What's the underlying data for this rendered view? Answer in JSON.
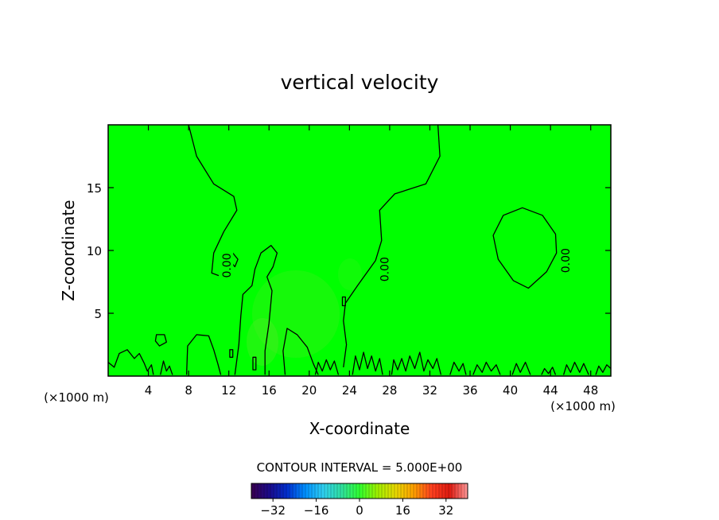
{
  "chart_data": {
    "type": "heatmap",
    "title": "vertical velocity",
    "xlabel": "X-coordinate",
    "ylabel": "Z-coordinate",
    "x_unit_left": "(×1000 m)",
    "x_unit_right": "(×1000 m)",
    "xlim": [
      0,
      50
    ],
    "ylim": [
      0,
      20
    ],
    "x_ticks": [
      4,
      8,
      12,
      16,
      20,
      24,
      28,
      32,
      36,
      40,
      44,
      48
    ],
    "x_tick_labels": [
      "4",
      "8",
      "12",
      "16",
      "20",
      "24",
      "28",
      "32",
      "36",
      "40",
      "44",
      "48"
    ],
    "y_ticks": [
      5,
      10,
      15
    ],
    "y_tick_labels": [
      "5",
      "10",
      "15"
    ],
    "background_color": "#00ff00",
    "contour_level_value": 0,
    "contour_labels": [
      {
        "text": "0.00",
        "x": 11.8,
        "z": 8.8
      },
      {
        "text": "0.00",
        "x": 27.5,
        "z": 8.5
      },
      {
        "text": "0.00",
        "x": 45.5,
        "z": 9.2
      }
    ],
    "contours": [
      {
        "closed": false,
        "points": [
          [
            8.0,
            20
          ],
          [
            8.8,
            17.5
          ],
          [
            10.5,
            15.3
          ],
          [
            12.5,
            14.3
          ],
          [
            12.8,
            13.2
          ],
          [
            11.5,
            11.5
          ],
          [
            10.5,
            9.8
          ],
          [
            10.3,
            8.2
          ],
          [
            11.0,
            8.0
          ]
        ]
      },
      {
        "closed": false,
        "points": [
          [
            32.8,
            20
          ],
          [
            33.0,
            17.5
          ],
          [
            31.6,
            15.3
          ],
          [
            28.5,
            14.5
          ],
          [
            27.0,
            13.2
          ],
          [
            27.2,
            10.8
          ],
          [
            26.6,
            9.2
          ],
          [
            24.8,
            7.2
          ],
          [
            23.6,
            5.8
          ],
          [
            23.4,
            4.4
          ],
          [
            23.7,
            2.5
          ],
          [
            23.4,
            0.7
          ]
        ]
      },
      {
        "closed": true,
        "points": [
          [
            41.2,
            13.4
          ],
          [
            43.2,
            12.8
          ],
          [
            44.5,
            11.3
          ],
          [
            44.6,
            9.8
          ],
          [
            43.6,
            8.3
          ],
          [
            41.8,
            7.0
          ],
          [
            40.3,
            7.6
          ],
          [
            38.8,
            9.3
          ],
          [
            38.3,
            11.2
          ],
          [
            39.3,
            12.8
          ]
        ]
      },
      {
        "closed": false,
        "points": [
          [
            12.6,
            0.1
          ],
          [
            13.0,
            2.5
          ],
          [
            13.2,
            4.8
          ],
          [
            13.4,
            6.5
          ],
          [
            14.3,
            7.2
          ],
          [
            14.6,
            8.5
          ],
          [
            15.2,
            9.8
          ],
          [
            16.2,
            10.4
          ],
          [
            16.8,
            9.8
          ],
          [
            16.4,
            8.7
          ],
          [
            15.8,
            7.9
          ],
          [
            16.3,
            6.8
          ],
          [
            16.0,
            4.2
          ],
          [
            15.6,
            2.0
          ],
          [
            15.6,
            0.1
          ]
        ]
      },
      {
        "closed": true,
        "points": [
          [
            12.4,
            9.8
          ],
          [
            12.9,
            9.3
          ],
          [
            12.6,
            8.7
          ],
          [
            12.1,
            9.2
          ]
        ]
      },
      {
        "closed": false,
        "points": [
          [
            17.6,
            0.1
          ],
          [
            17.4,
            2.0
          ],
          [
            17.8,
            3.8
          ],
          [
            18.8,
            3.3
          ],
          [
            19.8,
            2.3
          ],
          [
            20.4,
            1.0
          ],
          [
            20.9,
            0.1
          ]
        ]
      },
      {
        "closed": false,
        "points": [
          [
            7.8,
            0.1
          ],
          [
            7.9,
            2.4
          ],
          [
            8.8,
            3.3
          ],
          [
            10.0,
            3.2
          ],
          [
            10.5,
            2.1
          ],
          [
            10.9,
            1.0
          ],
          [
            11.2,
            0.1
          ]
        ]
      },
      {
        "closed": true,
        "points": [
          [
            4.8,
            3.3
          ],
          [
            5.6,
            3.3
          ],
          [
            5.8,
            2.7
          ],
          [
            5.1,
            2.4
          ],
          [
            4.7,
            2.8
          ]
        ]
      },
      {
        "closed": true,
        "points": [
          [
            23.3,
            6.3
          ],
          [
            23.6,
            6.3
          ],
          [
            23.6,
            5.6
          ],
          [
            23.3,
            5.6
          ]
        ]
      },
      {
        "closed": true,
        "points": [
          [
            14.4,
            1.5
          ],
          [
            14.7,
            1.5
          ],
          [
            14.7,
            0.5
          ],
          [
            14.4,
            0.5
          ]
        ]
      },
      {
        "closed": true,
        "points": [
          [
            12.1,
            2.1
          ],
          [
            12.4,
            2.1
          ],
          [
            12.4,
            1.5
          ],
          [
            12.1,
            1.5
          ]
        ]
      },
      {
        "closed": false,
        "points": [
          [
            0.0,
            1.1
          ],
          [
            0.6,
            0.7
          ],
          [
            1.1,
            1.8
          ],
          [
            1.9,
            2.1
          ],
          [
            2.6,
            1.4
          ],
          [
            3.1,
            1.8
          ],
          [
            3.6,
            1.0
          ],
          [
            3.9,
            0.4
          ],
          [
            4.3,
            0.9
          ],
          [
            4.5,
            0.1
          ]
        ]
      },
      {
        "closed": false,
        "points": [
          [
            5.2,
            0.1
          ],
          [
            5.5,
            1.2
          ],
          [
            5.8,
            0.4
          ],
          [
            6.1,
            0.8
          ],
          [
            6.4,
            0.1
          ]
        ]
      },
      {
        "closed": false,
        "points": [
          [
            20.6,
            0.1
          ],
          [
            20.9,
            1.1
          ],
          [
            21.3,
            0.4
          ],
          [
            21.7,
            1.3
          ],
          [
            22.1,
            0.5
          ],
          [
            22.5,
            1.2
          ],
          [
            22.9,
            0.1
          ]
        ]
      },
      {
        "closed": false,
        "points": [
          [
            24.3,
            0.1
          ],
          [
            24.6,
            1.6
          ],
          [
            25.0,
            0.5
          ],
          [
            25.4,
            1.9
          ],
          [
            25.8,
            0.6
          ],
          [
            26.2,
            1.6
          ],
          [
            26.6,
            0.4
          ],
          [
            27.0,
            1.4
          ],
          [
            27.3,
            0.1
          ]
        ]
      },
      {
        "closed": false,
        "points": [
          [
            28.2,
            0.1
          ],
          [
            28.4,
            1.3
          ],
          [
            28.8,
            0.5
          ],
          [
            29.2,
            1.4
          ],
          [
            29.6,
            0.4
          ],
          [
            30.0,
            1.6
          ],
          [
            30.5,
            0.6
          ],
          [
            31.0,
            1.9
          ],
          [
            31.4,
            0.4
          ],
          [
            31.8,
            1.3
          ],
          [
            32.3,
            0.6
          ],
          [
            32.7,
            1.4
          ],
          [
            33.1,
            0.1
          ]
        ]
      },
      {
        "closed": false,
        "points": [
          [
            34.0,
            0.1
          ],
          [
            34.4,
            1.1
          ],
          [
            34.9,
            0.4
          ],
          [
            35.3,
            1.0
          ],
          [
            35.6,
            0.1
          ]
        ]
      },
      {
        "closed": false,
        "points": [
          [
            36.3,
            0.1
          ],
          [
            36.7,
            0.9
          ],
          [
            37.2,
            0.3
          ],
          [
            37.6,
            1.1
          ],
          [
            38.1,
            0.4
          ],
          [
            38.6,
            0.9
          ],
          [
            39.0,
            0.1
          ]
        ]
      },
      {
        "closed": false,
        "points": [
          [
            40.2,
            0.1
          ],
          [
            40.6,
            1.0
          ],
          [
            41.0,
            0.3
          ],
          [
            41.5,
            1.1
          ],
          [
            42.0,
            0.1
          ]
        ]
      },
      {
        "closed": false,
        "points": [
          [
            43.1,
            0.1
          ],
          [
            43.4,
            0.6
          ],
          [
            43.8,
            0.2
          ],
          [
            44.2,
            0.7
          ],
          [
            44.5,
            0.1
          ]
        ]
      },
      {
        "closed": false,
        "points": [
          [
            45.3,
            0.1
          ],
          [
            45.6,
            0.9
          ],
          [
            46.0,
            0.3
          ],
          [
            46.4,
            1.1
          ],
          [
            46.9,
            0.3
          ],
          [
            47.3,
            1.0
          ],
          [
            47.8,
            0.1
          ]
        ]
      },
      {
        "closed": false,
        "points": [
          [
            48.5,
            0.1
          ],
          [
            48.8,
            0.8
          ],
          [
            49.2,
            0.3
          ],
          [
            49.6,
            0.9
          ],
          [
            50.0,
            0.6
          ]
        ]
      }
    ],
    "contour_interval_text": "CONTOUR INTERVAL = 5.000E+00",
    "colorbar": {
      "min": -40,
      "max": 40,
      "ticks": [
        -32,
        -16,
        0,
        16,
        32
      ],
      "tick_labels": [
        "−32",
        "−16",
        "0",
        "16",
        "32"
      ],
      "stops": [
        "#3a0050",
        "#1a0a8a",
        "#0030d0",
        "#0090ff",
        "#30d0f0",
        "#30e0a0",
        "#30ff30",
        "#a0f000",
        "#e8d800",
        "#ffa000",
        "#ff4020",
        "#e01a10",
        "#ff9a9a"
      ]
    }
  }
}
